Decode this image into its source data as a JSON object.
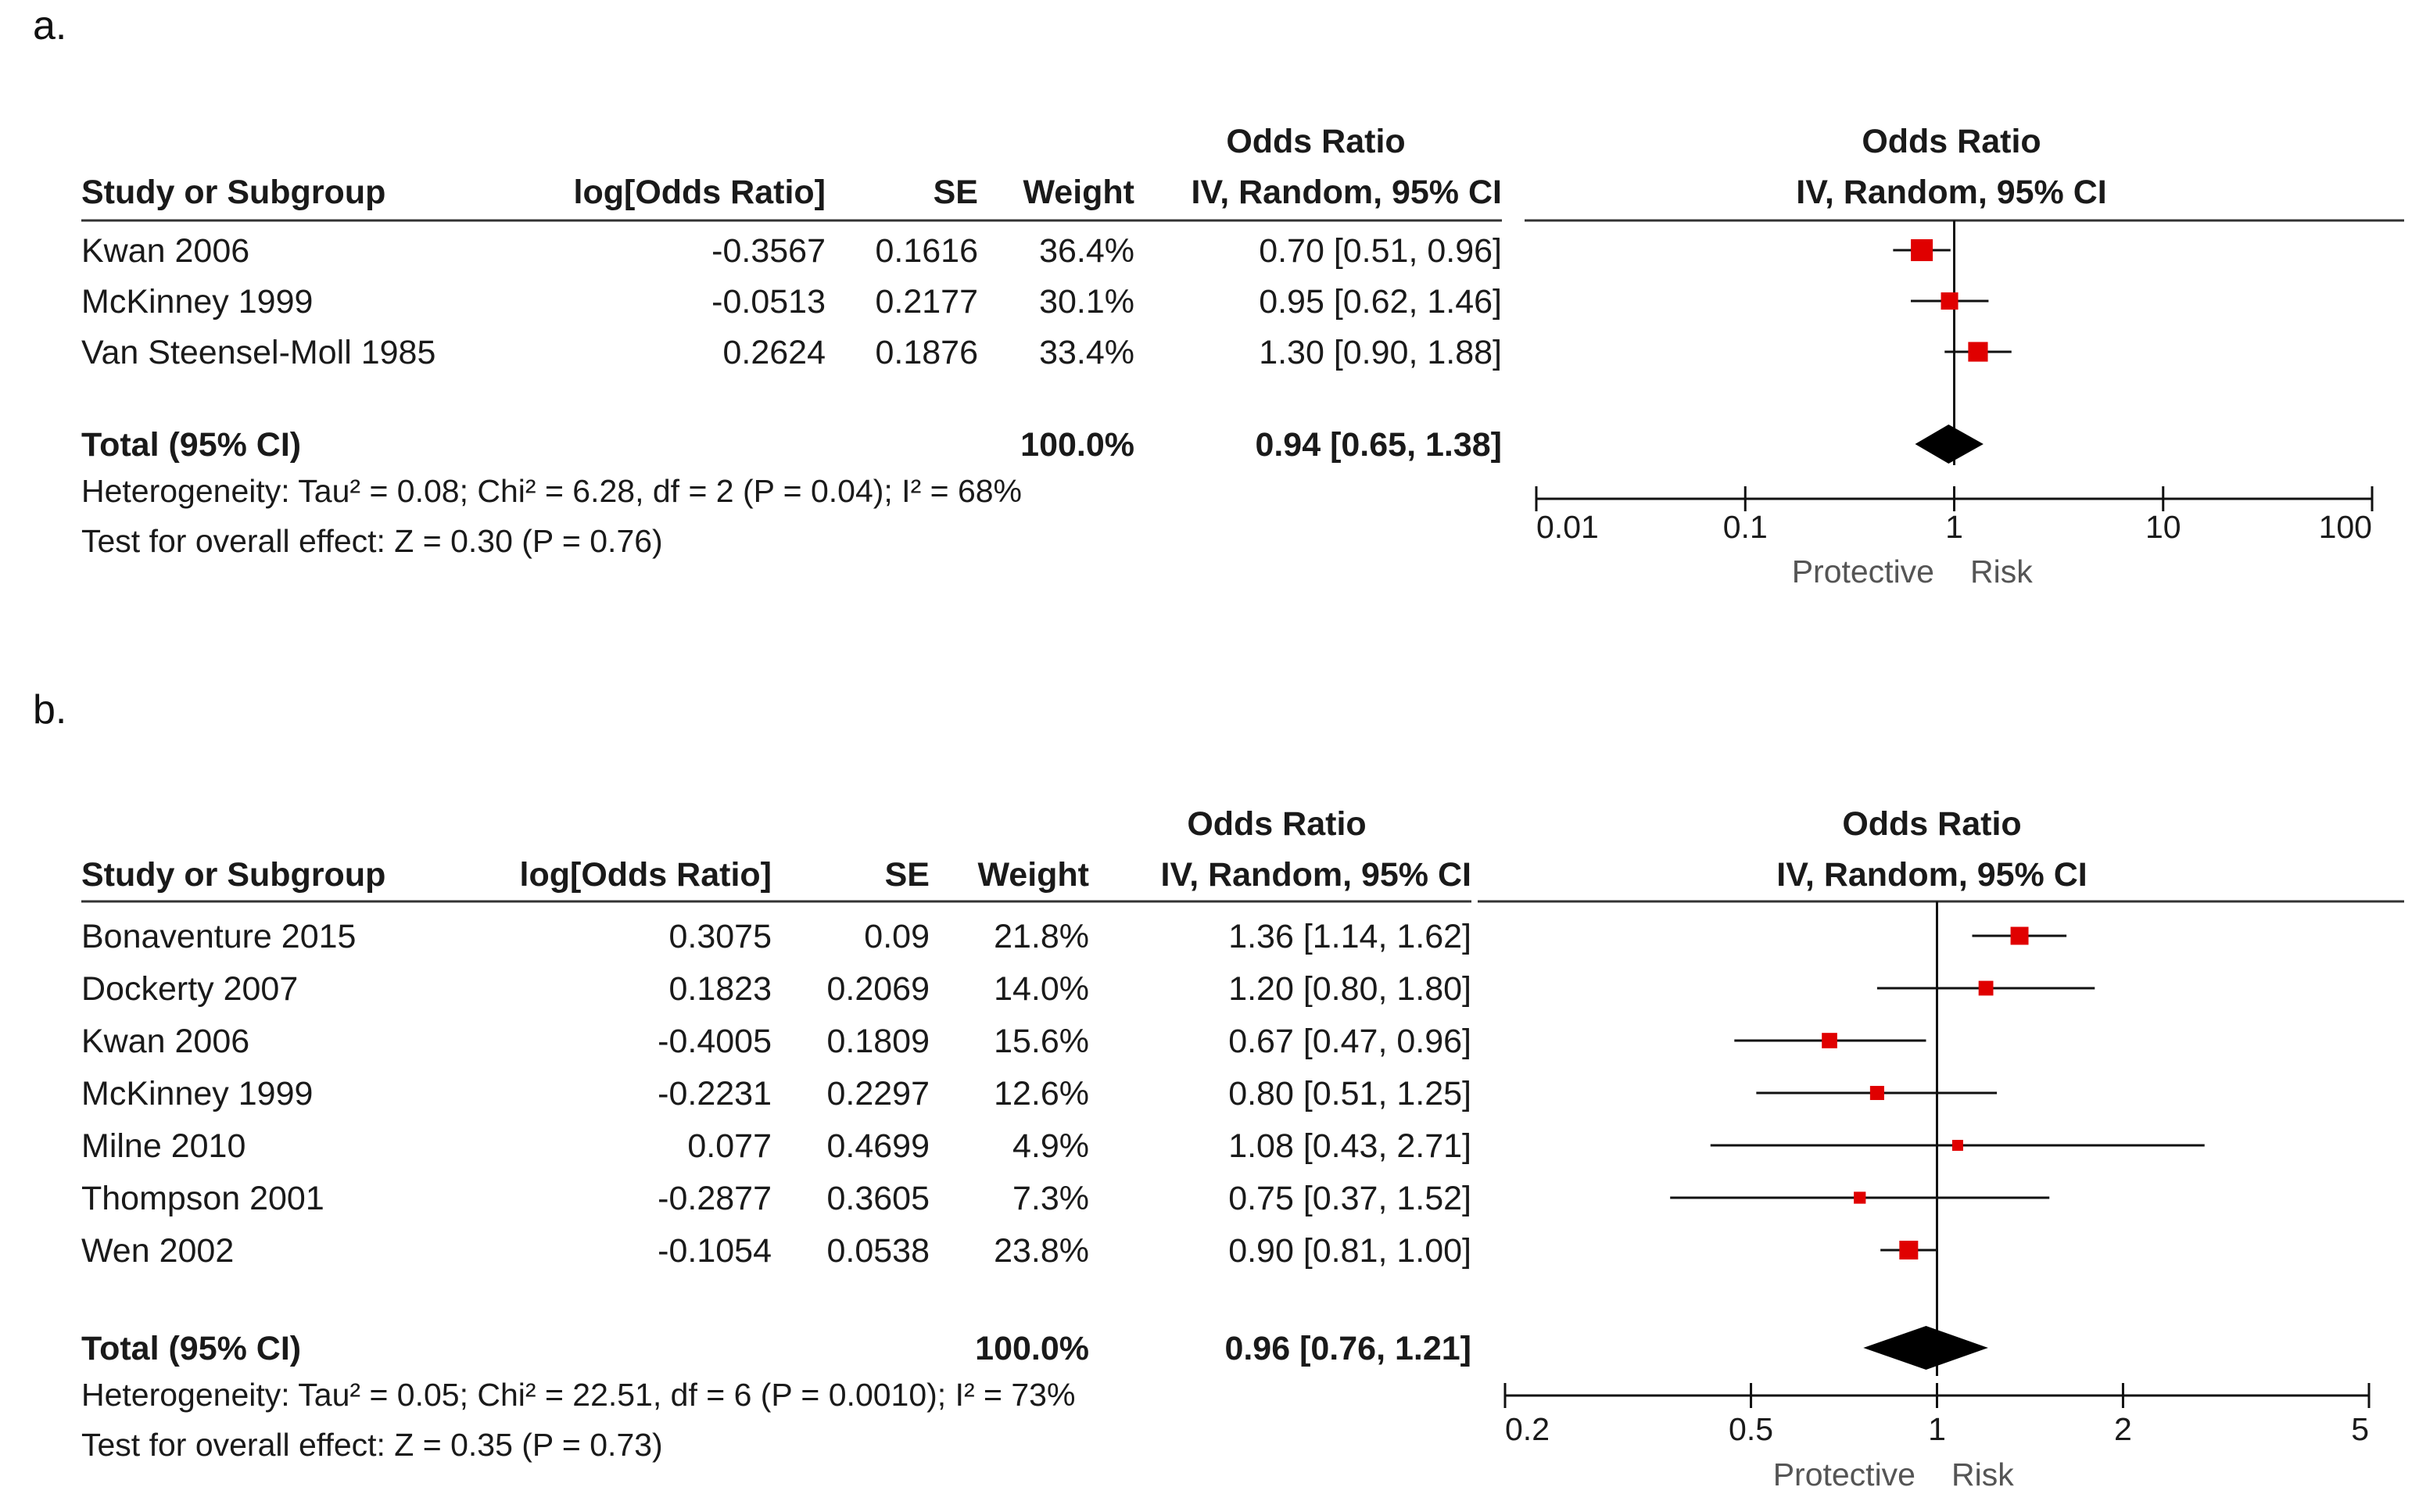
{
  "chart_data": [
    {
      "panel_label": "a.",
      "type": "forest",
      "scale": "log",
      "columns": {
        "study": "Study or Subgroup",
        "log_or": "log[Odds Ratio]",
        "se": "SE",
        "weight": "Weight",
        "or_title": "Odds Ratio",
        "or_sub": "IV, Random, 95% CI",
        "plot_title": "Odds Ratio",
        "plot_sub": "IV, Random, 95% CI"
      },
      "studies": [
        {
          "name": "Kwan 2006",
          "log_or": "-0.3567",
          "se": "0.1616",
          "weight": "36.4%",
          "ci_text": "0.70 [0.51, 0.96]",
          "or": 0.7,
          "lo": 0.51,
          "hi": 0.96,
          "w": 36.4
        },
        {
          "name": "McKinney 1999",
          "log_or": "-0.0513",
          "se": "0.2177",
          "weight": "30.1%",
          "ci_text": "0.95 [0.62, 1.46]",
          "or": 0.95,
          "lo": 0.62,
          "hi": 1.46,
          "w": 30.1
        },
        {
          "name": "Van Steensel-Moll 1985",
          "log_or": "0.2624",
          "se": "0.1876",
          "weight": "33.4%",
          "ci_text": "1.30 [0.90, 1.88]",
          "or": 1.3,
          "lo": 0.9,
          "hi": 1.88,
          "w": 33.4
        }
      ],
      "total": {
        "label": "Total (95% CI)",
        "weight": "100.0%",
        "ci_text": "0.94 [0.65, 1.38]",
        "or": 0.94,
        "lo": 0.65,
        "hi": 1.38
      },
      "heterogeneity": "Heterogeneity: Tau² = 0.08; Chi² = 6.28, df = 2 (P = 0.04); I² = 68%",
      "overall": "Test for overall effect: Z = 0.30 (P = 0.76)",
      "axis": {
        "min": 0.01,
        "max": 100,
        "ticks": [
          0.01,
          0.1,
          1,
          10,
          100
        ],
        "tick_labels": [
          "0.01",
          "0.1",
          "1",
          "10",
          "100"
        ],
        "left_label": "Protective",
        "right_label": "Risk"
      },
      "colors": {
        "marker": "#e00000",
        "diamond": "#000000"
      }
    },
    {
      "panel_label": "b.",
      "type": "forest",
      "scale": "log",
      "columns": {
        "study": "Study or Subgroup",
        "log_or": "log[Odds Ratio]",
        "se": "SE",
        "weight": "Weight",
        "or_title": "Odds Ratio",
        "or_sub": "IV, Random, 95% CI",
        "plot_title": "Odds Ratio",
        "plot_sub": "IV, Random, 95% CI"
      },
      "studies": [
        {
          "name": "Bonaventure 2015",
          "log_or": "0.3075",
          "se": "0.09",
          "weight": "21.8%",
          "ci_text": "1.36 [1.14, 1.62]",
          "or": 1.36,
          "lo": 1.14,
          "hi": 1.62,
          "w": 21.8
        },
        {
          "name": "Dockerty 2007",
          "log_or": "0.1823",
          "se": "0.2069",
          "weight": "14.0%",
          "ci_text": "1.20 [0.80, 1.80]",
          "or": 1.2,
          "lo": 0.8,
          "hi": 1.8,
          "w": 14.0
        },
        {
          "name": "Kwan 2006",
          "log_or": "-0.4005",
          "se": "0.1809",
          "weight": "15.6%",
          "ci_text": "0.67 [0.47, 0.96]",
          "or": 0.67,
          "lo": 0.47,
          "hi": 0.96,
          "w": 15.6
        },
        {
          "name": "McKinney 1999",
          "log_or": "-0.2231",
          "se": "0.2297",
          "weight": "12.6%",
          "ci_text": "0.80 [0.51, 1.25]",
          "or": 0.8,
          "lo": 0.51,
          "hi": 1.25,
          "w": 12.6
        },
        {
          "name": "Milne 2010",
          "log_or": "0.077",
          "se": "0.4699",
          "weight": "4.9%",
          "ci_text": "1.08 [0.43, 2.71]",
          "or": 1.08,
          "lo": 0.43,
          "hi": 2.71,
          "w": 4.9
        },
        {
          "name": "Thompson 2001",
          "log_or": "-0.2877",
          "se": "0.3605",
          "weight": "7.3%",
          "ci_text": "0.75 [0.37, 1.52]",
          "or": 0.75,
          "lo": 0.37,
          "hi": 1.52,
          "w": 7.3
        },
        {
          "name": "Wen 2002",
          "log_or": "-0.1054",
          "se": "0.0538",
          "weight": "23.8%",
          "ci_text": "0.90 [0.81, 1.00]",
          "or": 0.9,
          "lo": 0.81,
          "hi": 1.0,
          "w": 23.8
        }
      ],
      "total": {
        "label": "Total (95% CI)",
        "weight": "100.0%",
        "ci_text": "0.96 [0.76, 1.21]",
        "or": 0.96,
        "lo": 0.76,
        "hi": 1.21
      },
      "heterogeneity": "Heterogeneity: Tau² = 0.05; Chi² = 22.51, df = 6 (P = 0.0010); I² = 73%",
      "overall": "Test for overall effect: Z = 0.35 (P = 0.73)",
      "axis": {
        "min": 0.2,
        "max": 5,
        "ticks": [
          0.2,
          0.5,
          1,
          2,
          5
        ],
        "tick_labels": [
          "0.2",
          "0.5",
          "1",
          "2",
          "5"
        ],
        "left_label": "Protective",
        "right_label": "Risk"
      },
      "colors": {
        "marker": "#e00000",
        "diamond": "#000000"
      }
    }
  ]
}
